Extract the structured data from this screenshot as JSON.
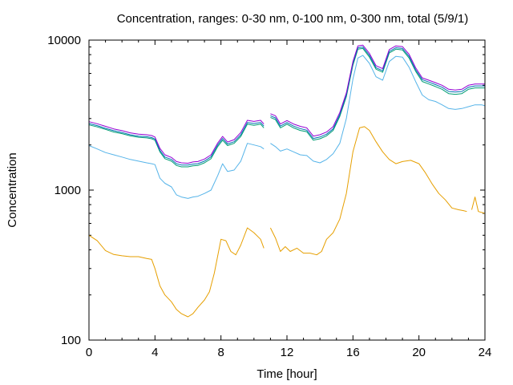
{
  "chart_data": {
    "type": "line",
    "title": "Concentration, ranges: 0-30 nm, 0-100 nm, 0-300 nm, total (5/9/1)",
    "xlabel": "Time [hour]",
    "ylabel": "Concentration",
    "xlim": [
      0,
      24
    ],
    "ylim": [
      100,
      10000
    ],
    "y_scale": "log",
    "grid": false,
    "legend": "none",
    "x_ticks": [
      "0",
      "4",
      "8",
      "12",
      "16",
      "20",
      "24"
    ],
    "y_ticks": [
      "100",
      "1000",
      "10000"
    ],
    "series": [
      {
        "color": "#e69f00",
        "points": [
          [
            0,
            500
          ],
          [
            0.5,
            460
          ],
          [
            1,
            395
          ],
          [
            1.5,
            372
          ],
          [
            2,
            365
          ],
          [
            2.5,
            360
          ],
          [
            3,
            360
          ],
          [
            3.5,
            350
          ],
          [
            3.8,
            345
          ],
          [
            4,
            300
          ],
          [
            4.3,
            230
          ],
          [
            4.6,
            200
          ],
          [
            5,
            180
          ],
          [
            5.3,
            160
          ],
          [
            5.6,
            150
          ],
          [
            6,
            143
          ],
          [
            6.3,
            150
          ],
          [
            6.6,
            165
          ],
          [
            7,
            185
          ],
          [
            7.3,
            210
          ],
          [
            7.6,
            280
          ],
          [
            8,
            470
          ],
          [
            8.3,
            460
          ],
          [
            8.6,
            390
          ],
          [
            8.9,
            370
          ],
          [
            9.2,
            430
          ],
          [
            9.6,
            560
          ],
          [
            10,
            520
          ],
          [
            10.4,
            470
          ],
          [
            10.6,
            410
          ],
          null,
          [
            11,
            560
          ],
          [
            11.3,
            480
          ],
          [
            11.6,
            390
          ],
          [
            11.9,
            420
          ],
          [
            12.2,
            390
          ],
          [
            12.6,
            410
          ],
          [
            13,
            380
          ],
          [
            13.4,
            380
          ],
          [
            13.8,
            370
          ],
          [
            14.1,
            390
          ],
          [
            14.4,
            470
          ],
          [
            14.8,
            520
          ],
          [
            15.2,
            640
          ],
          [
            15.6,
            950
          ],
          [
            16,
            1800
          ],
          [
            16.4,
            2600
          ],
          [
            16.7,
            2650
          ],
          [
            17,
            2500
          ],
          [
            17.4,
            2100
          ],
          [
            17.8,
            1800
          ],
          [
            18.2,
            1600
          ],
          [
            18.6,
            1500
          ],
          [
            19,
            1550
          ],
          [
            19.5,
            1580
          ],
          [
            20,
            1500
          ],
          [
            20.4,
            1300
          ],
          [
            20.8,
            1100
          ],
          [
            21.2,
            950
          ],
          [
            21.6,
            860
          ],
          [
            22,
            760
          ],
          [
            22.4,
            740
          ],
          [
            22.7,
            730
          ],
          [
            22.9,
            720
          ],
          null,
          [
            23.2,
            740
          ],
          [
            23.4,
            900
          ],
          [
            23.6,
            720
          ],
          [
            24,
            700
          ]
        ]
      },
      {
        "color": "#56b4e9",
        "points": [
          [
            0,
            1980
          ],
          [
            0.5,
            1880
          ],
          [
            1,
            1780
          ],
          [
            1.5,
            1720
          ],
          [
            2,
            1660
          ],
          [
            2.5,
            1600
          ],
          [
            3,
            1560
          ],
          [
            3.5,
            1520
          ],
          [
            3.8,
            1500
          ],
          [
            4,
            1480
          ],
          [
            4.3,
            1200
          ],
          [
            4.6,
            1110
          ],
          [
            5,
            1050
          ],
          [
            5.3,
            930
          ],
          [
            5.6,
            900
          ],
          [
            6,
            880
          ],
          [
            6.3,
            900
          ],
          [
            6.6,
            910
          ],
          [
            7,
            950
          ],
          [
            7.4,
            1000
          ],
          [
            7.8,
            1250
          ],
          [
            8.1,
            1500
          ],
          [
            8.4,
            1330
          ],
          [
            8.8,
            1360
          ],
          [
            9.2,
            1560
          ],
          [
            9.6,
            2050
          ],
          [
            10,
            2000
          ],
          [
            10.4,
            1950
          ],
          [
            10.6,
            1880
          ],
          null,
          [
            11,
            2050
          ],
          [
            11.3,
            1950
          ],
          [
            11.6,
            1820
          ],
          [
            12,
            1880
          ],
          [
            12.4,
            1800
          ],
          [
            12.8,
            1720
          ],
          [
            13.2,
            1700
          ],
          [
            13.6,
            1560
          ],
          [
            14,
            1520
          ],
          [
            14.4,
            1600
          ],
          [
            14.8,
            1750
          ],
          [
            15.2,
            2050
          ],
          [
            15.6,
            3000
          ],
          [
            16,
            5500
          ],
          [
            16.3,
            7600
          ],
          [
            16.6,
            7900
          ],
          [
            17,
            7000
          ],
          [
            17.4,
            5700
          ],
          [
            17.8,
            5400
          ],
          [
            18.2,
            7200
          ],
          [
            18.6,
            7800
          ],
          [
            19,
            7700
          ],
          [
            19.4,
            6600
          ],
          [
            19.8,
            5300
          ],
          [
            20.2,
            4300
          ],
          [
            20.6,
            4000
          ],
          [
            21,
            3900
          ],
          [
            21.4,
            3700
          ],
          [
            21.8,
            3500
          ],
          [
            22.2,
            3450
          ],
          [
            22.6,
            3500
          ],
          [
            23,
            3600
          ],
          [
            23.4,
            3700
          ],
          [
            23.8,
            3700
          ],
          [
            24,
            3650
          ]
        ]
      },
      {
        "color": "#009e73",
        "points": [
          [
            0,
            2720
          ],
          [
            0.5,
            2640
          ],
          [
            1,
            2540
          ],
          [
            1.5,
            2440
          ],
          [
            2,
            2380
          ],
          [
            2.5,
            2300
          ],
          [
            3,
            2250
          ],
          [
            3.5,
            2230
          ],
          [
            3.8,
            2200
          ],
          [
            4,
            2150
          ],
          [
            4.3,
            1800
          ],
          [
            4.6,
            1620
          ],
          [
            5,
            1560
          ],
          [
            5.3,
            1460
          ],
          [
            5.6,
            1430
          ],
          [
            6,
            1430
          ],
          [
            6.3,
            1450
          ],
          [
            6.6,
            1460
          ],
          [
            7,
            1520
          ],
          [
            7.4,
            1620
          ],
          [
            7.8,
            1950
          ],
          [
            8.1,
            2150
          ],
          [
            8.4,
            1980
          ],
          [
            8.8,
            2050
          ],
          [
            9.2,
            2280
          ],
          [
            9.6,
            2750
          ],
          [
            10,
            2700
          ],
          [
            10.4,
            2750
          ],
          [
            10.6,
            2600
          ],
          null,
          [
            11,
            3050
          ],
          [
            11.3,
            2950
          ],
          [
            11.6,
            2600
          ],
          [
            12,
            2750
          ],
          [
            12.4,
            2600
          ],
          [
            12.8,
            2500
          ],
          [
            13.2,
            2450
          ],
          [
            13.6,
            2150
          ],
          [
            14,
            2200
          ],
          [
            14.4,
            2300
          ],
          [
            14.8,
            2500
          ],
          [
            15.2,
            3100
          ],
          [
            15.6,
            4200
          ],
          [
            16,
            6800
          ],
          [
            16.3,
            8700
          ],
          [
            16.6,
            8800
          ],
          [
            17,
            7700
          ],
          [
            17.4,
            6400
          ],
          [
            17.8,
            6100
          ],
          [
            18.2,
            8200
          ],
          [
            18.6,
            8700
          ],
          [
            19,
            8600
          ],
          [
            19.4,
            7600
          ],
          [
            19.8,
            6200
          ],
          [
            20.2,
            5300
          ],
          [
            20.6,
            5100
          ],
          [
            21,
            4900
          ],
          [
            21.4,
            4700
          ],
          [
            21.8,
            4400
          ],
          [
            22.2,
            4350
          ],
          [
            22.6,
            4400
          ],
          [
            23,
            4700
          ],
          [
            23.4,
            4800
          ],
          [
            23.8,
            4800
          ],
          [
            24,
            4800
          ]
        ]
      },
      {
        "color": "#0072b2",
        "points": [
          [
            0,
            2780
          ],
          [
            0.5,
            2690
          ],
          [
            1,
            2580
          ],
          [
            1.5,
            2490
          ],
          [
            2,
            2420
          ],
          [
            2.5,
            2340
          ],
          [
            3,
            2290
          ],
          [
            3.5,
            2270
          ],
          [
            3.8,
            2240
          ],
          [
            4,
            2190
          ],
          [
            4.3,
            1840
          ],
          [
            4.6,
            1660
          ],
          [
            5,
            1600
          ],
          [
            5.3,
            1500
          ],
          [
            5.6,
            1470
          ],
          [
            6,
            1470
          ],
          [
            6.3,
            1490
          ],
          [
            6.6,
            1500
          ],
          [
            7,
            1560
          ],
          [
            7.4,
            1670
          ],
          [
            7.8,
            2000
          ],
          [
            8.1,
            2210
          ],
          [
            8.4,
            2030
          ],
          [
            8.8,
            2100
          ],
          [
            9.2,
            2340
          ],
          [
            9.6,
            2820
          ],
          [
            10,
            2780
          ],
          [
            10.4,
            2820
          ],
          [
            10.6,
            2670
          ],
          null,
          [
            11,
            3130
          ],
          [
            11.3,
            3030
          ],
          [
            11.6,
            2670
          ],
          [
            12,
            2820
          ],
          [
            12.4,
            2670
          ],
          [
            12.8,
            2570
          ],
          [
            13.2,
            2510
          ],
          [
            13.6,
            2210
          ],
          [
            14,
            2260
          ],
          [
            14.4,
            2360
          ],
          [
            14.8,
            2560
          ],
          [
            15.2,
            3180
          ],
          [
            15.6,
            4300
          ],
          [
            16,
            7000
          ],
          [
            16.3,
            8900
          ],
          [
            16.6,
            9000
          ],
          [
            17,
            7900
          ],
          [
            17.4,
            6550
          ],
          [
            17.8,
            6250
          ],
          [
            18.2,
            8400
          ],
          [
            18.6,
            8900
          ],
          [
            19,
            8800
          ],
          [
            19.4,
            7800
          ],
          [
            19.8,
            6350
          ],
          [
            20.2,
            5450
          ],
          [
            20.6,
            5250
          ],
          [
            21,
            5050
          ],
          [
            21.4,
            4850
          ],
          [
            21.8,
            4550
          ],
          [
            22.2,
            4500
          ],
          [
            22.6,
            4550
          ],
          [
            23,
            4850
          ],
          [
            23.4,
            4950
          ],
          [
            23.8,
            4950
          ],
          [
            24,
            4950
          ]
        ]
      },
      {
        "color": "#9400d3",
        "points": [
          [
            0,
            2860
          ],
          [
            0.5,
            2770
          ],
          [
            1,
            2660
          ],
          [
            1.5,
            2560
          ],
          [
            2,
            2490
          ],
          [
            2.5,
            2410
          ],
          [
            3,
            2360
          ],
          [
            3.5,
            2340
          ],
          [
            3.8,
            2310
          ],
          [
            4,
            2260
          ],
          [
            4.3,
            1900
          ],
          [
            4.6,
            1720
          ],
          [
            5,
            1650
          ],
          [
            5.3,
            1550
          ],
          [
            5.6,
            1520
          ],
          [
            6,
            1510
          ],
          [
            6.3,
            1540
          ],
          [
            6.6,
            1550
          ],
          [
            7,
            1610
          ],
          [
            7.4,
            1720
          ],
          [
            7.8,
            2060
          ],
          [
            8.1,
            2280
          ],
          [
            8.4,
            2090
          ],
          [
            8.8,
            2170
          ],
          [
            9.2,
            2420
          ],
          [
            9.6,
            2920
          ],
          [
            10,
            2870
          ],
          [
            10.4,
            2920
          ],
          [
            10.6,
            2760
          ],
          null,
          [
            11,
            3230
          ],
          [
            11.3,
            3130
          ],
          [
            11.6,
            2760
          ],
          [
            12,
            2910
          ],
          [
            12.4,
            2760
          ],
          [
            12.8,
            2660
          ],
          [
            13.2,
            2600
          ],
          [
            13.6,
            2290
          ],
          [
            14,
            2340
          ],
          [
            14.4,
            2440
          ],
          [
            14.8,
            2650
          ],
          [
            15.2,
            3290
          ],
          [
            15.6,
            4450
          ],
          [
            16,
            7200
          ],
          [
            16.3,
            9150
          ],
          [
            16.6,
            9250
          ],
          [
            17,
            8150
          ],
          [
            17.4,
            6750
          ],
          [
            17.8,
            6450
          ],
          [
            18.2,
            8650
          ],
          [
            18.6,
            9150
          ],
          [
            19,
            9050
          ],
          [
            19.4,
            8050
          ],
          [
            19.8,
            6550
          ],
          [
            20.2,
            5600
          ],
          [
            20.6,
            5400
          ],
          [
            21,
            5200
          ],
          [
            21.4,
            5000
          ],
          [
            21.8,
            4700
          ],
          [
            22.2,
            4650
          ],
          [
            22.6,
            4700
          ],
          [
            23,
            5000
          ],
          [
            23.4,
            5100
          ],
          [
            23.8,
            5100
          ],
          [
            24,
            5100
          ]
        ]
      }
    ]
  }
}
